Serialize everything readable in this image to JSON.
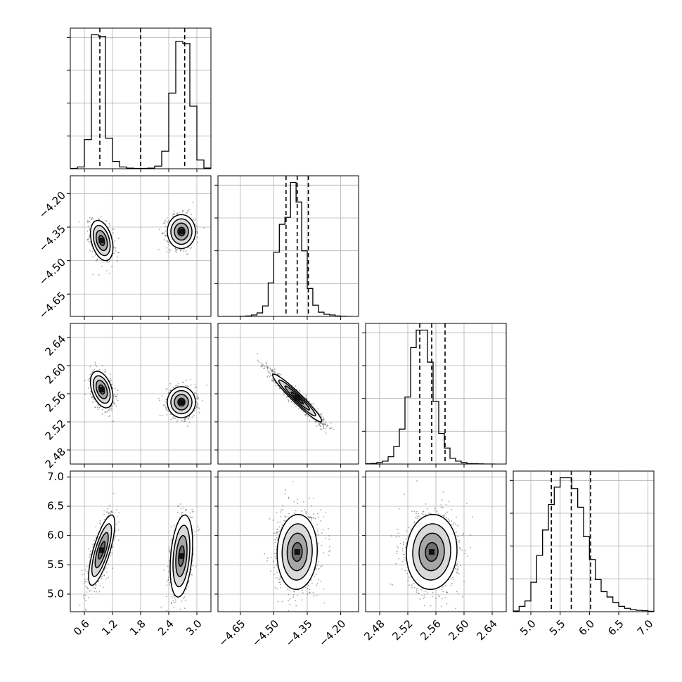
{
  "chart_data": {
    "type": "corner",
    "title": "",
    "parameters": [
      {
        "index": 0,
        "range": [
          0.3,
          3.3
        ],
        "ticks": [
          0.6,
          1.2,
          1.8,
          2.4,
          3.0
        ],
        "tick_labels": [
          "0.6",
          "1.2",
          "1.8",
          "2.4",
          "3.0"
        ],
        "quantiles": [
          0.93,
          1.8,
          2.74
        ],
        "histogram": {
          "bin_edges": [
            0.3,
            0.45,
            0.6,
            0.75,
            0.9,
            1.05,
            1.2,
            1.35,
            1.5,
            1.65,
            1.8,
            1.95,
            2.1,
            2.25,
            2.4,
            2.55,
            2.7,
            2.85,
            3.0,
            3.15,
            3.3
          ],
          "counts": [
            2,
            12,
            200,
            920,
            910,
            210,
            50,
            12,
            4,
            2,
            2,
            4,
            18,
            120,
            520,
            875,
            860,
            430,
            60,
            5
          ]
        }
      },
      {
        "index": 1,
        "range": [
          -4.75,
          -4.12
        ],
        "ticks": [
          -4.65,
          -4.5,
          -4.35,
          -4.2
        ],
        "tick_labels": [
          "−4.65",
          "−4.50",
          "−4.35",
          "−4.20"
        ],
        "quantiles": [
          -4.445,
          -4.395,
          -4.345
        ],
        "histogram": {
          "bin_edges": [
            -4.75,
            -4.725,
            -4.7,
            -4.675,
            -4.65,
            -4.625,
            -4.6,
            -4.575,
            -4.55,
            -4.525,
            -4.5,
            -4.475,
            -4.45,
            -4.425,
            -4.4,
            -4.375,
            -4.35,
            -4.325,
            -4.3,
            -4.275,
            -4.25,
            -4.225,
            -4.2,
            -4.175,
            -4.15
          ],
          "counts": [
            0,
            0,
            0,
            0,
            1,
            3,
            10,
            25,
            75,
            240,
            460,
            660,
            710,
            960,
            820,
            470,
            200,
            80,
            30,
            15,
            10,
            3,
            1,
            0
          ]
        }
      },
      {
        "index": 2,
        "range": [
          2.46,
          2.66
        ],
        "ticks": [
          2.48,
          2.52,
          2.56,
          2.6,
          2.64
        ],
        "tick_labels": [
          "2.48",
          "2.52",
          "2.56",
          "2.60",
          "2.64"
        ],
        "quantiles": [
          2.537,
          2.554,
          2.573
        ],
        "histogram": {
          "bin_edges": [
            2.46,
            2.468,
            2.476,
            2.484,
            2.492,
            2.5,
            2.508,
            2.516,
            2.524,
            2.532,
            2.54,
            2.548,
            2.556,
            2.564,
            2.572,
            2.58,
            2.588,
            2.596,
            2.604,
            2.612,
            2.62,
            2.628,
            2.636,
            2.644
          ],
          "counts": [
            2,
            4,
            10,
            20,
            50,
            120,
            240,
            460,
            800,
            920,
            920,
            700,
            430,
            210,
            110,
            40,
            20,
            10,
            3,
            2,
            1,
            0,
            0
          ]
        }
      },
      {
        "index": 3,
        "range": [
          4.7,
          7.1
        ],
        "ticks": [
          5.0,
          5.5,
          6.0,
          6.5,
          7.0
        ],
        "tick_labels": [
          "5.0",
          "5.5",
          "6.0",
          "6.5",
          "7.0"
        ],
        "quantiles": [
          5.35,
          5.69,
          6.02
        ],
        "histogram": {
          "bin_edges": [
            4.7,
            4.8,
            4.9,
            5.0,
            5.1,
            5.2,
            5.3,
            5.4,
            5.5,
            5.6,
            5.7,
            5.8,
            5.9,
            6.0,
            6.1,
            6.2,
            6.3,
            6.4,
            6.5,
            6.6,
            6.7,
            6.8,
            6.9,
            7.0,
            7.1
          ],
          "counts": [
            5,
            40,
            80,
            220,
            420,
            610,
            800,
            930,
            1000,
            1000,
            920,
            780,
            560,
            390,
            240,
            150,
            110,
            70,
            40,
            25,
            15,
            10,
            8,
            3
          ]
        }
      }
    ],
    "pairs": [
      {
        "x": 0,
        "y": 1,
        "corr": 0,
        "modes": [
          {
            "weight": 0.5,
            "mean": [
              0.97,
              -4.41
            ],
            "sd": [
              0.12,
              0.045
            ],
            "rho": -0.35
          },
          {
            "weight": 0.5,
            "mean": [
              2.67,
              -4.37
            ],
            "sd": [
              0.15,
              0.038
            ],
            "rho": 0
          }
        ]
      },
      {
        "x": 0,
        "y": 2,
        "corr": 0,
        "modes": [
          {
            "weight": 0.5,
            "mean": [
              0.97,
              2.566
            ],
            "sd": [
              0.12,
              0.013
            ],
            "rho": -0.4
          },
          {
            "weight": 0.5,
            "mean": [
              2.67,
              2.548
            ],
            "sd": [
              0.15,
              0.011
            ],
            "rho": 0
          }
        ]
      },
      {
        "x": 0,
        "y": 3,
        "corr": 0,
        "modes": [
          {
            "weight": 0.5,
            "mean": [
              0.97,
              5.75
            ],
            "sd": [
              0.14,
              0.3
            ],
            "rho": 0.75
          },
          {
            "weight": 0.5,
            "mean": [
              2.67,
              5.65
            ],
            "sd": [
              0.12,
              0.35
            ],
            "rho": 0.3
          }
        ]
      },
      {
        "x": 1,
        "y": 2,
        "modes": [
          {
            "weight": 1,
            "mean": [
              -4.395,
              2.554
            ],
            "sd": [
              0.055,
              0.017
            ],
            "rho": -0.96
          }
        ]
      },
      {
        "x": 1,
        "y": 3,
        "modes": [
          {
            "weight": 1,
            "mean": [
              -4.395,
              5.72
            ],
            "sd": [
              0.045,
              0.32
            ],
            "rho": 0.05
          }
        ]
      },
      {
        "x": 2,
        "y": 3,
        "modes": [
          {
            "weight": 1,
            "mean": [
              2.554,
              5.72
            ],
            "sd": [
              0.018,
              0.32
            ],
            "rho": 0.05
          }
        ]
      }
    ],
    "contour_levels": [
      0.5,
      1.0,
      1.5,
      2.0
    ],
    "grid": true,
    "xlabel": "",
    "ylabel": ""
  },
  "colors": {
    "ink": "#000000",
    "grid": "#b0b0b0",
    "fill_levels": [
      "#ffffff",
      "#d9d9d9",
      "#a6a6a6",
      "#6e6e6e"
    ]
  }
}
